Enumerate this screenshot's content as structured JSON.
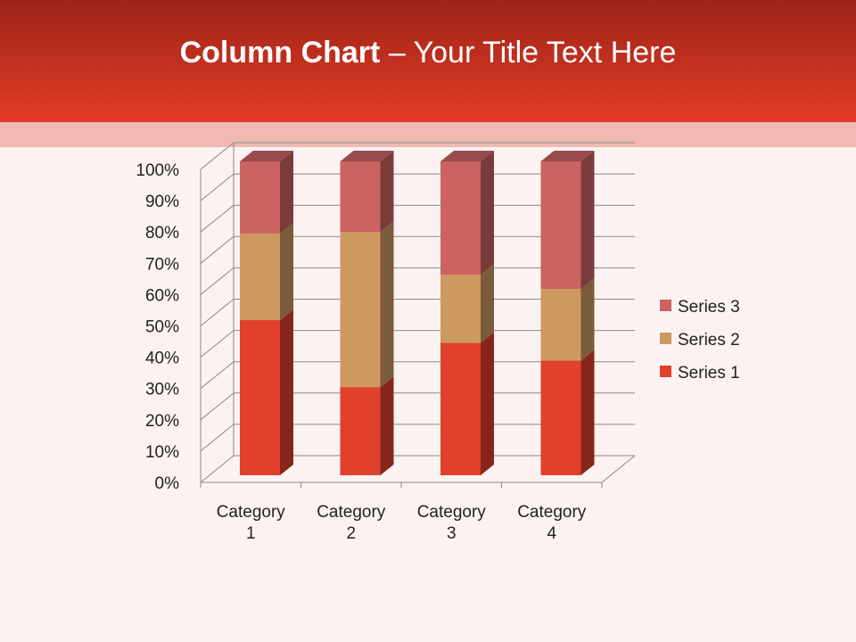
{
  "slide": {
    "title_bold": "Column Chart",
    "title_rest": " – Your Title Text Here"
  },
  "chart_data": {
    "type": "bar",
    "stacking": "percent",
    "three_d": true,
    "categories": [
      "Category 1",
      "Category 2",
      "Category 3",
      "Category 4"
    ],
    "series": [
      {
        "name": "Series 1",
        "values": [
          4.3,
          2.5,
          3.5,
          4.5
        ],
        "color": "#e0402c"
      },
      {
        "name": "Series 2",
        "values": [
          2.4,
          4.4,
          1.8,
          2.8
        ],
        "color": "#cc9960"
      },
      {
        "name": "Series 3",
        "values": [
          2,
          2,
          3,
          5
        ],
        "color": "#cc6262"
      }
    ],
    "y_ticks": [
      "0%",
      "10%",
      "20%",
      "30%",
      "40%",
      "50%",
      "60%",
      "70%",
      "80%",
      "90%",
      "100%"
    ],
    "ylim": [
      0,
      100
    ],
    "grid": true,
    "legend": "right"
  }
}
